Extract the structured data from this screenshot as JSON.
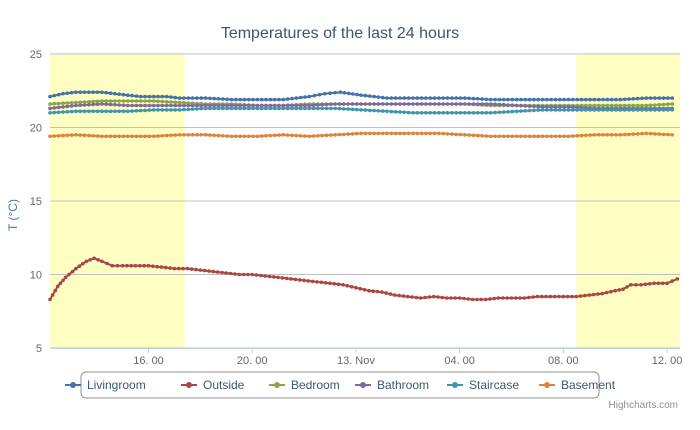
{
  "chart_data": {
    "type": "line",
    "title": "Temperatures of the last 24 hours",
    "ylabel": "T (°C)",
    "xlabel": "",
    "ylim": [
      5,
      25
    ],
    "y_ticks": [
      "5",
      "10",
      "15",
      "20",
      "25"
    ],
    "x_ticks": [
      "16. 00",
      "20. 00",
      "13. Nov",
      "04. 00",
      "08. 00",
      "12. 00"
    ],
    "x_tick_hours": [
      16,
      20,
      24,
      28,
      32,
      36
    ],
    "x_range_hours": [
      12.2,
      36.5
    ],
    "shaded_bands_hours": [
      [
        12.2,
        17.4
      ],
      [
        32.5,
        36.5
      ]
    ],
    "grid": true,
    "legend_placement": "bottom",
    "credits": "Highcharts.com",
    "colors": {
      "Livingroom": "#4572A7",
      "Outside": "#AA4643",
      "Bedroom": "#89A54E",
      "Bathroom": "#80699B",
      "Staircase": "#3D96AE",
      "Basement": "#DB843D",
      "band": "#FFFFC4"
    },
    "series": [
      {
        "name": "Livingroom",
        "x": [
          12.2,
          12.7,
          13.2,
          13.7,
          14.2,
          14.7,
          15.2,
          15.7,
          16.2,
          16.7,
          17.2,
          17.7,
          18.2,
          19.2,
          20.2,
          21.2,
          22.2,
          22.8,
          23.4,
          24.2,
          25.2,
          26.2,
          27.2,
          28.2,
          29.2,
          30.2,
          31.2,
          32.2,
          33.2,
          34.2,
          35.2,
          36.2
        ],
        "values": [
          22.1,
          22.3,
          22.4,
          22.4,
          22.4,
          22.3,
          22.2,
          22.1,
          22.1,
          22.1,
          22.0,
          22.0,
          22.0,
          21.9,
          21.9,
          21.9,
          22.1,
          22.3,
          22.4,
          22.2,
          22.0,
          22.0,
          22.0,
          22.0,
          21.9,
          21.9,
          21.9,
          21.9,
          21.9,
          21.9,
          22.0,
          22.0
        ]
      },
      {
        "name": "Outside",
        "x": [
          12.2,
          12.5,
          12.8,
          13.2,
          13.6,
          13.9,
          14.2,
          14.6,
          15.0,
          15.5,
          16.0,
          16.5,
          17.0,
          17.5,
          18.0,
          18.5,
          19.0,
          19.5,
          20.0,
          20.5,
          21.0,
          21.5,
          22.0,
          22.5,
          23.0,
          23.5,
          24.0,
          24.5,
          25.0,
          25.5,
          26.0,
          26.5,
          27.0,
          27.5,
          28.0,
          28.5,
          29.0,
          29.5,
          30.0,
          30.5,
          31.0,
          31.5,
          32.0,
          32.5,
          33.0,
          33.5,
          34.0,
          34.3,
          34.6,
          35.0,
          35.5,
          36.0,
          36.4
        ],
        "values": [
          8.3,
          9.2,
          9.8,
          10.4,
          10.9,
          11.1,
          10.9,
          10.6,
          10.6,
          10.6,
          10.6,
          10.5,
          10.4,
          10.4,
          10.3,
          10.2,
          10.1,
          10.0,
          10.0,
          9.9,
          9.8,
          9.7,
          9.6,
          9.5,
          9.4,
          9.3,
          9.1,
          8.9,
          8.8,
          8.6,
          8.5,
          8.4,
          8.5,
          8.4,
          8.4,
          8.3,
          8.3,
          8.4,
          8.4,
          8.4,
          8.5,
          8.5,
          8.5,
          8.5,
          8.6,
          8.7,
          8.9,
          9.0,
          9.3,
          9.3,
          9.4,
          9.4,
          9.7
        ]
      },
      {
        "name": "Bedroom",
        "x": [
          12.2,
          13.2,
          14.2,
          15.2,
          16.2,
          17.2,
          18.2,
          19.2,
          20.2,
          21.2,
          22.2,
          23.2,
          24.2,
          25.2,
          26.2,
          27.2,
          28.2,
          29.2,
          30.2,
          31.2,
          32.2,
          33.2,
          34.2,
          35.2,
          36.2
        ],
        "values": [
          21.6,
          21.7,
          21.8,
          21.8,
          21.8,
          21.7,
          21.6,
          21.6,
          21.5,
          21.5,
          21.6,
          21.6,
          21.6,
          21.6,
          21.6,
          21.6,
          21.6,
          21.5,
          21.5,
          21.5,
          21.5,
          21.5,
          21.5,
          21.5,
          21.6
        ]
      },
      {
        "name": "Bathroom",
        "x": [
          12.2,
          13.2,
          14.2,
          15.2,
          16.2,
          17.2,
          18.2,
          19.2,
          20.2,
          21.2,
          22.2,
          23.2,
          24.2,
          25.2,
          26.2,
          27.2,
          28.2,
          29.2,
          30.2,
          31.2,
          32.2,
          33.2,
          34.2,
          35.2,
          36.2
        ],
        "values": [
          21.3,
          21.5,
          21.6,
          21.5,
          21.5,
          21.5,
          21.5,
          21.5,
          21.5,
          21.5,
          21.5,
          21.6,
          21.6,
          21.6,
          21.6,
          21.6,
          21.6,
          21.6,
          21.5,
          21.4,
          21.4,
          21.3,
          21.3,
          21.3,
          21.3
        ]
      },
      {
        "name": "Staircase",
        "x": [
          12.2,
          13.2,
          14.2,
          15.2,
          16.2,
          17.2,
          18.2,
          19.2,
          20.2,
          21.2,
          22.2,
          23.2,
          24.2,
          25.2,
          26.2,
          27.2,
          28.2,
          29.2,
          30.2,
          31.2,
          32.2,
          33.2,
          34.2,
          35.2,
          36.2
        ],
        "values": [
          21.0,
          21.1,
          21.1,
          21.1,
          21.2,
          21.2,
          21.3,
          21.3,
          21.3,
          21.3,
          21.3,
          21.3,
          21.2,
          21.1,
          21.0,
          21.0,
          21.0,
          21.0,
          21.1,
          21.2,
          21.2,
          21.2,
          21.2,
          21.2,
          21.2
        ]
      },
      {
        "name": "Basement",
        "x": [
          12.2,
          13.2,
          14.2,
          15.2,
          16.2,
          17.2,
          18.2,
          19.2,
          20.2,
          21.2,
          22.2,
          23.2,
          24.2,
          25.2,
          26.2,
          27.2,
          28.2,
          29.2,
          30.2,
          31.2,
          32.2,
          33.2,
          34.2,
          35.2,
          36.2
        ],
        "values": [
          19.4,
          19.5,
          19.4,
          19.4,
          19.4,
          19.5,
          19.5,
          19.4,
          19.4,
          19.5,
          19.4,
          19.5,
          19.6,
          19.6,
          19.6,
          19.6,
          19.5,
          19.4,
          19.4,
          19.4,
          19.4,
          19.5,
          19.5,
          19.6,
          19.5
        ]
      }
    ]
  }
}
